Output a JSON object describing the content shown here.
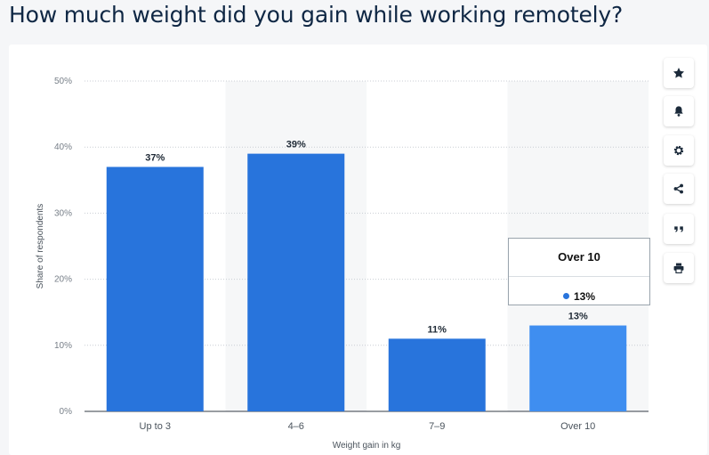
{
  "header": {
    "title": "How much weight did you gain while working remotely?"
  },
  "toolbar": {
    "buttons": [
      {
        "name": "favorite-button",
        "icon": "star-icon"
      },
      {
        "name": "notification-button",
        "icon": "bell-icon"
      },
      {
        "name": "settings-button",
        "icon": "gear-icon"
      },
      {
        "name": "share-button",
        "icon": "share-icon"
      },
      {
        "name": "cite-button",
        "icon": "quote-icon"
      },
      {
        "name": "print-button",
        "icon": "print-icon"
      }
    ]
  },
  "tooltip": {
    "title": "Over 10",
    "value": "13%"
  },
  "colors": {
    "bar": "#2874dc",
    "bar_highlight": "#3f8ef0",
    "alt_band": "#f6f7f8",
    "title": "#0f2744"
  },
  "chart_data": {
    "type": "bar",
    "categories": [
      "Up to 3",
      "4–6",
      "7–9",
      "Over 10"
    ],
    "values": [
      37,
      39,
      11,
      13
    ],
    "value_labels": [
      "37%",
      "39%",
      "11%",
      "13%"
    ],
    "highlighted_category": "Over 10",
    "xlabel": "Weight gain in kg",
    "ylabel": "Share of respondents",
    "ylim": [
      0,
      50
    ],
    "yticks": [
      0,
      10,
      20,
      30,
      40,
      50
    ],
    "ytick_labels": [
      "0%",
      "10%",
      "20%",
      "30%",
      "40%",
      "50%"
    ],
    "grid": true
  }
}
